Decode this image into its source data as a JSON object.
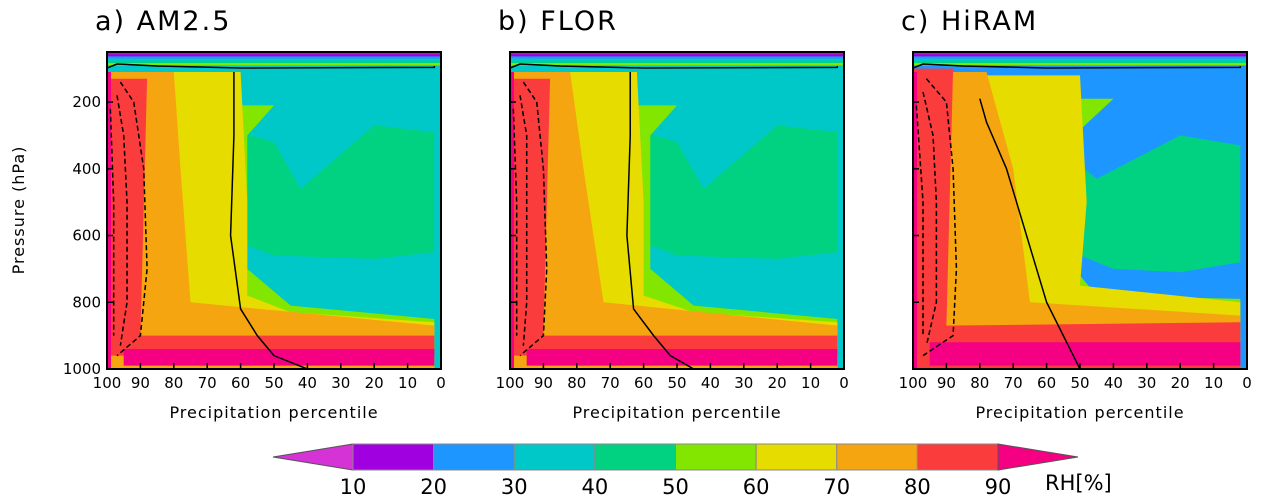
{
  "chart_data": {
    "type": "heatmap",
    "ylabel": "Pressure (hPa)",
    "colorbar": {
      "label": "RH[%]",
      "levels": [
        10,
        20,
        30,
        40,
        50,
        60,
        70,
        80,
        90
      ],
      "colors": [
        "#d633d6",
        "#a000e0",
        "#1e96ff",
        "#00c8c8",
        "#00d282",
        "#82e600",
        "#e6dc00",
        "#f5a50f",
        "#fa3c3c",
        "#f50082"
      ],
      "extend": "both"
    },
    "panels": [
      {
        "title": "a) AM2.5",
        "xlabel": "Precipitation percentile",
        "xlim": [
          100,
          0
        ],
        "ylim": [
          1000,
          50
        ],
        "xticks": [
          100,
          90,
          80,
          70,
          60,
          50,
          40,
          30,
          20,
          10,
          0
        ],
        "yticks": [
          200,
          400,
          600,
          800,
          1000
        ],
        "bands": [
          {
            "level": 90,
            "x": [
              [
                95,
                200
              ],
              [
                95,
                990
              ],
              [
                2,
                990
              ],
              [
                2,
                940
              ],
              [
                95,
                940
              ],
              [
                95,
                200
              ]
            ]
          },
          {
            "level": 80,
            "x": [
              [
                88,
                130
              ],
              [
                90,
                900
              ],
              [
                2,
                900
              ],
              [
                2,
                960
              ],
              [
                100,
                960
              ],
              [
                100,
                130
              ]
            ]
          },
          {
            "level": 70,
            "x": [
              [
                80,
                110
              ],
              [
                78,
                400
              ],
              [
                75,
                800
              ],
              [
                2,
                870
              ],
              [
                2,
                1000
              ],
              [
                100,
                1000
              ],
              [
                100,
                110
              ]
            ]
          },
          {
            "level": 60,
            "x": [
              [
                60,
                110
              ],
              [
                58,
                500
              ],
              [
                58,
                780
              ],
              [
                45,
                830
              ],
              [
                2,
                860
              ],
              [
                2,
                1000
              ],
              [
                100,
                1000
              ],
              [
                100,
                110
              ]
            ]
          },
          {
            "level": 50,
            "x": [
              [
                50,
                210
              ],
              [
                58,
                300
              ],
              [
                58,
                700
              ],
              [
                45,
                810
              ],
              [
                2,
                850
              ],
              [
                2,
                1000
              ],
              [
                100,
                1000
              ],
              [
                100,
                210
              ]
            ]
          },
          {
            "level": 40,
            "x": [
              [
                42,
                460
              ],
              [
                50,
                320
              ],
              [
                60,
                290
              ],
              [
                66,
                360
              ],
              [
                66,
                600
              ],
              [
                50,
                660
              ],
              [
                20,
                670
              ],
              [
                2,
                650
              ],
              [
                2,
                290
              ],
              [
                20,
                270
              ],
              [
                42,
                460
              ]
            ]
          }
        ],
        "solid_contour": [
          [
            100,
            98
          ],
          [
            97,
            86
          ],
          [
            85,
            92
          ],
          [
            60,
            98
          ],
          [
            2,
            96
          ],
          [
            2,
            92
          ]
        ],
        "solid_contour2": [
          [
            62,
            110
          ],
          [
            62,
            300
          ],
          [
            63,
            600
          ],
          [
            60,
            820
          ],
          [
            55,
            900
          ],
          [
            50,
            960
          ],
          [
            40,
            1000
          ]
        ],
        "dashed_contours": [
          [
            [
              96,
              140
            ],
            [
              92,
              200
            ],
            [
              89,
              400
            ],
            [
              88,
              700
            ],
            [
              90,
              900
            ],
            [
              97,
              960
            ]
          ],
          [
            [
              97,
              180
            ],
            [
              95,
              300
            ],
            [
              94,
              500
            ],
            [
              94,
              800
            ],
            [
              96,
              930
            ]
          ],
          [
            [
              99,
              220
            ],
            [
              98,
              500
            ],
            [
              98,
              900
            ]
          ]
        ]
      },
      {
        "title": "b) FLOR",
        "xlabel": "Precipitation percentile",
        "xlim": [
          100,
          0
        ],
        "ylim": [
          1000,
          50
        ],
        "xticks": [
          100,
          90,
          80,
          70,
          60,
          50,
          40,
          30,
          20,
          10,
          0
        ],
        "yticks": [
          200,
          400,
          600,
          800,
          1000
        ],
        "bands": [
          {
            "level": 90,
            "x": [
              [
                95,
                200
              ],
              [
                95,
                990
              ],
              [
                2,
                990
              ],
              [
                2,
                940
              ],
              [
                95,
                940
              ],
              [
                95,
                200
              ]
            ]
          },
          {
            "level": 80,
            "x": [
              [
                88,
                130
              ],
              [
                90,
                900
              ],
              [
                2,
                900
              ],
              [
                2,
                960
              ],
              [
                100,
                960
              ],
              [
                100,
                130
              ]
            ]
          },
          {
            "level": 70,
            "x": [
              [
                82,
                110
              ],
              [
                78,
                400
              ],
              [
                72,
                800
              ],
              [
                2,
                870
              ],
              [
                2,
                1000
              ],
              [
                100,
                1000
              ],
              [
                100,
                110
              ]
            ]
          },
          {
            "level": 60,
            "x": [
              [
                62,
                110
              ],
              [
                60,
                500
              ],
              [
                60,
                780
              ],
              [
                45,
                830
              ],
              [
                2,
                860
              ],
              [
                2,
                1000
              ],
              [
                100,
                1000
              ],
              [
                100,
                110
              ]
            ]
          },
          {
            "level": 50,
            "x": [
              [
                50,
                210
              ],
              [
                58,
                300
              ],
              [
                58,
                700
              ],
              [
                45,
                810
              ],
              [
                2,
                850
              ],
              [
                2,
                1000
              ],
              [
                100,
                1000
              ],
              [
                100,
                210
              ]
            ]
          },
          {
            "level": 40,
            "x": [
              [
                42,
                460
              ],
              [
                50,
                320
              ],
              [
                60,
                290
              ],
              [
                66,
                360
              ],
              [
                66,
                600
              ],
              [
                50,
                660
              ],
              [
                20,
                670
              ],
              [
                2,
                650
              ],
              [
                2,
                290
              ],
              [
                20,
                270
              ],
              [
                42,
                460
              ]
            ]
          }
        ],
        "solid_contour": [
          [
            100,
            98
          ],
          [
            97,
            86
          ],
          [
            85,
            92
          ],
          [
            60,
            98
          ],
          [
            2,
            96
          ],
          [
            2,
            92
          ]
        ],
        "solid_contour2": [
          [
            64,
            110
          ],
          [
            64,
            300
          ],
          [
            65,
            600
          ],
          [
            63,
            820
          ],
          [
            57,
            900
          ],
          [
            52,
            960
          ],
          [
            45,
            1000
          ]
        ],
        "dashed_contours": [
          [
            [
              96,
              140
            ],
            [
              92,
              200
            ],
            [
              90,
              400
            ],
            [
              89,
              700
            ],
            [
              90,
              900
            ],
            [
              97,
              960
            ]
          ],
          [
            [
              97,
              180
            ],
            [
              95,
              300
            ],
            [
              95,
              500
            ],
            [
              95,
              800
            ],
            [
              96,
              930
            ]
          ],
          [
            [
              99,
              220
            ],
            [
              98,
              500
            ],
            [
              98,
              900
            ]
          ]
        ]
      },
      {
        "title": "c) HiRAM",
        "xlabel": "Precipitation percentile",
        "xlim": [
          100,
          0
        ],
        "ylim": [
          1000,
          50
        ],
        "xticks": [
          100,
          90,
          80,
          70,
          60,
          50,
          40,
          30,
          20,
          10,
          0
        ],
        "yticks": [
          200,
          400,
          600,
          800,
          1000
        ],
        "bands": [
          {
            "level": 90,
            "x": [
              [
                95,
                200
              ],
              [
                95,
                990
              ],
              [
                2,
                990
              ],
              [
                2,
                920
              ],
              [
                95,
                920
              ],
              [
                95,
                200
              ]
            ]
          },
          {
            "level": 80,
            "x": [
              [
                88,
                100
              ],
              [
                90,
                870
              ],
              [
                2,
                860
              ],
              [
                2,
                1000
              ],
              [
                100,
                1000
              ],
              [
                100,
                100
              ]
            ]
          },
          {
            "level": 70,
            "x": [
              [
                78,
                110
              ],
              [
                70,
                400
              ],
              [
                65,
                800
              ],
              [
                2,
                840
              ],
              [
                2,
                1000
              ],
              [
                100,
                1000
              ],
              [
                100,
                110
              ]
            ]
          },
          {
            "level": 60,
            "x": [
              [
                50,
                120
              ],
              [
                48,
                500
              ],
              [
                50,
                750
              ],
              [
                2,
                800
              ],
              [
                2,
                1000
              ],
              [
                100,
                1000
              ],
              [
                100,
                120
              ]
            ]
          },
          {
            "level": 50,
            "x": [
              [
                40,
                190
              ],
              [
                55,
                330
              ],
              [
                60,
                600
              ],
              [
                45,
                780
              ],
              [
                2,
                790
              ],
              [
                2,
                1000
              ],
              [
                100,
                1000
              ],
              [
                100,
                190
              ]
            ]
          },
          {
            "level": 40,
            "x": [
              [
                45,
                430
              ],
              [
                55,
                350
              ],
              [
                58,
                500
              ],
              [
                55,
                640
              ],
              [
                40,
                700
              ],
              [
                20,
                710
              ],
              [
                2,
                680
              ],
              [
                2,
                330
              ],
              [
                20,
                300
              ],
              [
                45,
                430
              ]
            ]
          },
          {
            "level": 30,
            "x": [
              [
                40,
                540
              ],
              [
                45,
                470
              ],
              [
                30,
                430
              ],
              [
                10,
                440
              ],
              [
                8,
                600
              ],
              [
                20,
                660
              ],
              [
                40,
                600
              ]
            ]
          }
        ],
        "solid_contour": [
          [
            100,
            98
          ],
          [
            97,
            86
          ],
          [
            85,
            92
          ],
          [
            60,
            98
          ],
          [
            2,
            96
          ],
          [
            2,
            92
          ]
        ],
        "solid_contour2": [
          [
            80,
            190
          ],
          [
            78,
            260
          ],
          [
            72,
            400
          ],
          [
            66,
            600
          ],
          [
            60,
            800
          ],
          [
            55,
            900
          ],
          [
            50,
            1000
          ]
        ],
        "dashed_contours": [
          [
            [
              96,
              130
            ],
            [
              90,
              200
            ],
            [
              88,
              400
            ],
            [
              87,
              700
            ],
            [
              88,
              900
            ],
            [
              97,
              960
            ]
          ],
          [
            [
              97,
              170
            ],
            [
              94,
              300
            ],
            [
              93,
              500
            ],
            [
              93,
              800
            ],
            [
              96,
              930
            ]
          ],
          [
            [
              99,
              210
            ],
            [
              97,
              500
            ],
            [
              97,
              900
            ]
          ]
        ]
      }
    ]
  }
}
